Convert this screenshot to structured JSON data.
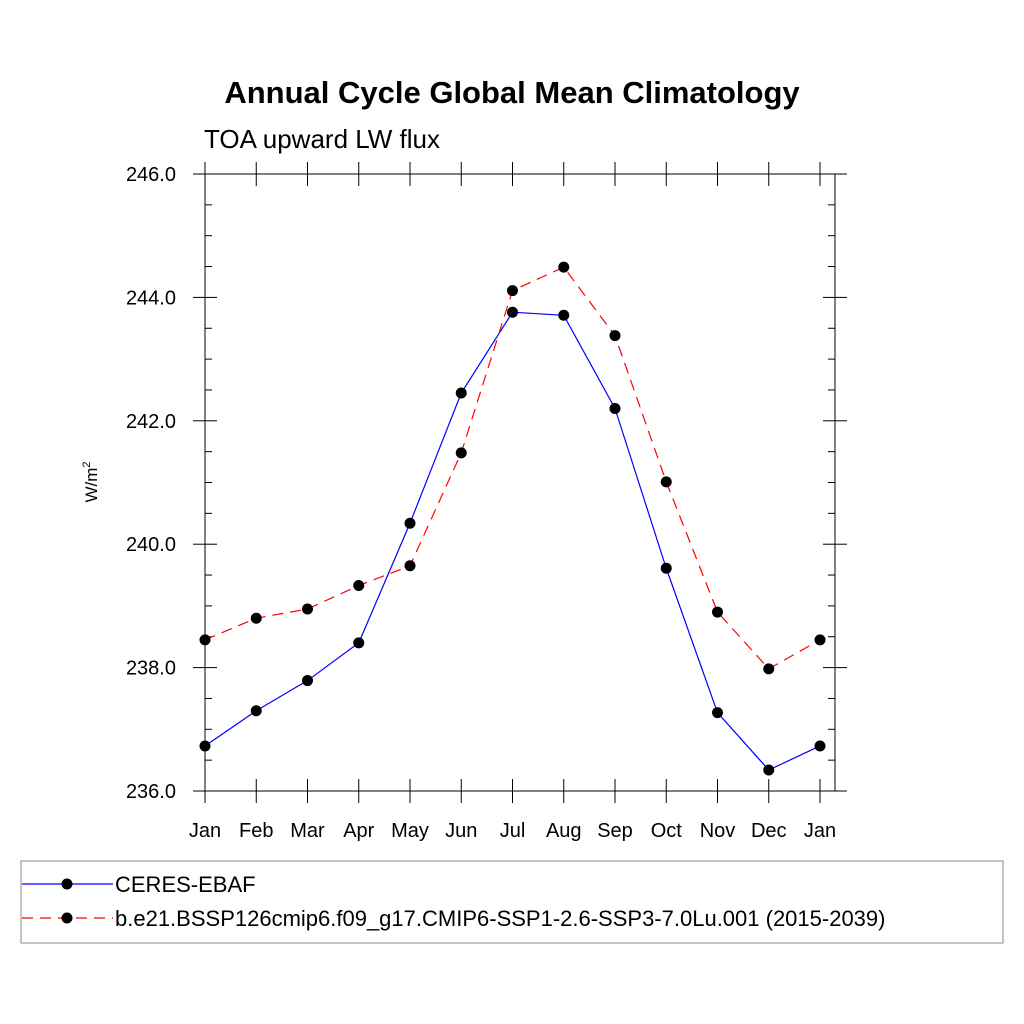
{
  "chart_data": {
    "type": "line",
    "title": "Annual Cycle Global Mean Climatology",
    "subtitle": "TOA upward LW flux",
    "ylabel_base": "W/m",
    "ylabel_sup": "2",
    "xlabel": "",
    "categories": [
      "Jan",
      "Feb",
      "Mar",
      "Apr",
      "May",
      "Jun",
      "Jul",
      "Aug",
      "Sep",
      "Oct",
      "Nov",
      "Dec",
      "Jan"
    ],
    "ylim": [
      236.0,
      246.0
    ],
    "yticks": [
      "236.0",
      "238.0",
      "240.0",
      "242.0",
      "244.0",
      "246.0"
    ],
    "grid": false,
    "legend_position": "bottom",
    "series": [
      {
        "name": "CERES-EBAF",
        "color": "#0000ff",
        "line_style": "solid",
        "marker": "filled-circle",
        "values": [
          236.73,
          237.3,
          237.79,
          238.4,
          240.34,
          242.45,
          243.76,
          243.71,
          242.2,
          239.61,
          237.27,
          236.34,
          236.73
        ]
      },
      {
        "name": "b.e21.BSSP126cmip6.f09_g17.CMIP6-SSP1-2.6-SSP3-7.0Lu.001 (2015-2039)",
        "color": "#ff0000",
        "line_style": "dashed",
        "marker": "filled-circle",
        "values": [
          238.45,
          238.8,
          238.95,
          239.33,
          239.65,
          241.48,
          244.11,
          244.49,
          243.38,
          241.01,
          238.9,
          237.98,
          238.45
        ]
      }
    ]
  }
}
